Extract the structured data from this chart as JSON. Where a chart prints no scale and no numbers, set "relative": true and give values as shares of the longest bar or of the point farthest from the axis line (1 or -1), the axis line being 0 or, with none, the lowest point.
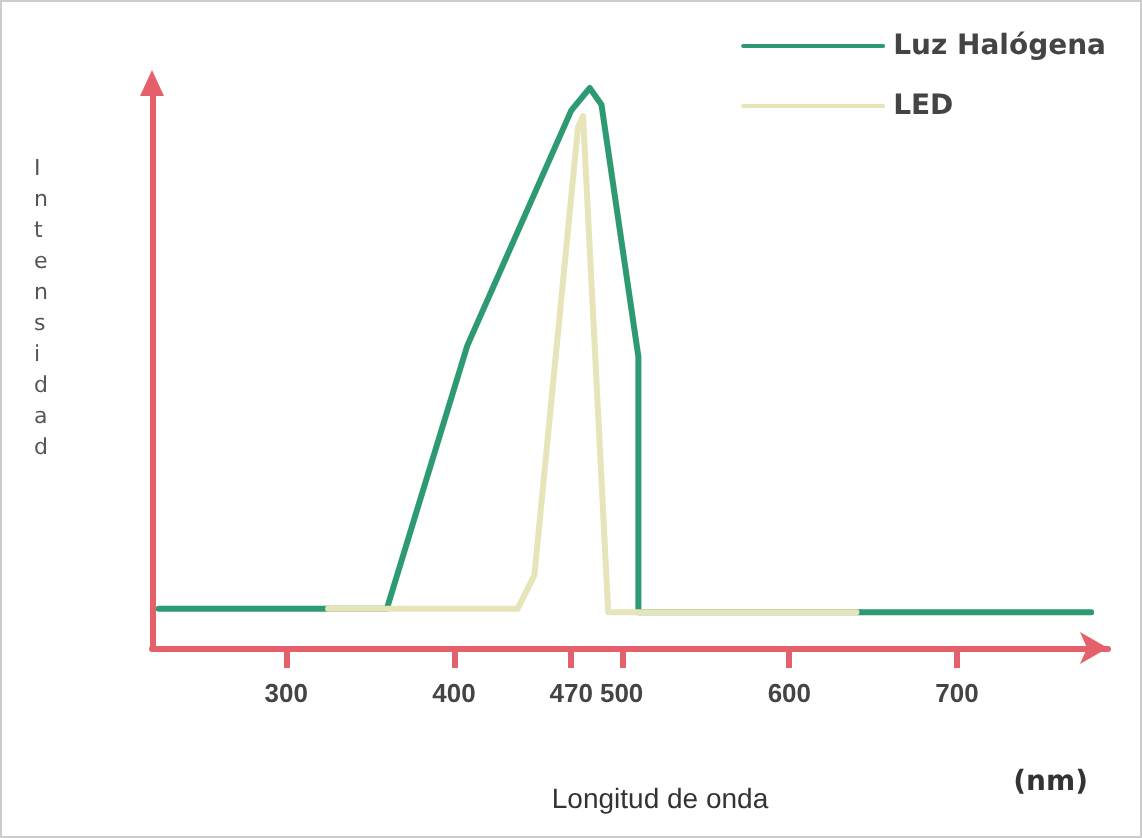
{
  "chart_data": {
    "type": "line",
    "xlabel": "Longitud de onda",
    "ylabel": "Intensidad",
    "relative": true,
    "annotations": [
      "(nm)"
    ],
    "xlim": [
      220,
      790
    ],
    "xticks": [
      300,
      400,
      470,
      500,
      600,
      700
    ],
    "grid": false,
    "legend": "top right",
    "marker": "none",
    "line_style": "solid",
    "series": [
      {
        "name": "Luz Halógena",
        "color": "#2e9a72",
        "x": [
          224,
          360,
          408,
          470,
          481,
          488,
          510,
          510,
          780
        ],
        "values": [
          0.07,
          0.07,
          0.54,
          0.96,
          1.0,
          0.97,
          0.52,
          0.064,
          0.064
        ]
      },
      {
        "name": "LED",
        "color": "#e6e4b8",
        "x": [
          325,
          438,
          448,
          474,
          477,
          492,
          640
        ],
        "values": [
          0.07,
          0.07,
          0.13,
          0.93,
          0.95,
          0.064,
          0.064
        ]
      }
    ]
  }
}
